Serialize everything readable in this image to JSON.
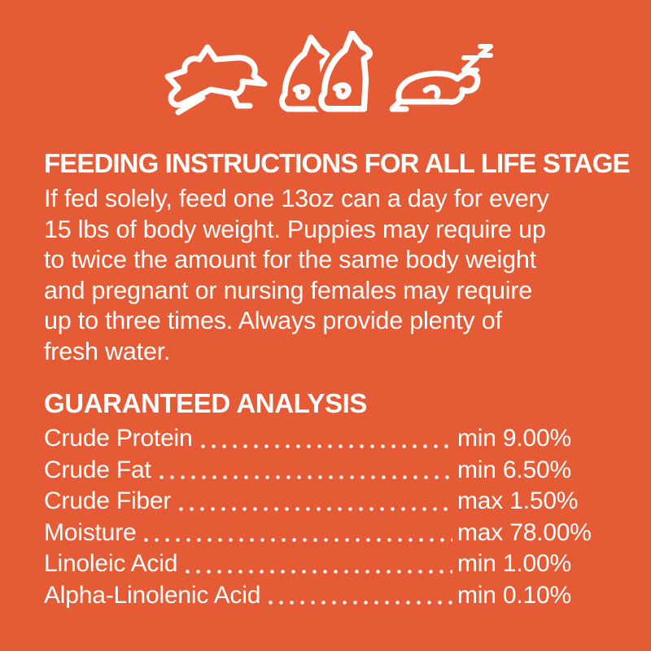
{
  "page": {
    "background_color": "#E55B36",
    "text_color": "#FFFFFF"
  },
  "icons": {
    "items": [
      {
        "name": "running-dog-icon",
        "description": "running dog line art"
      },
      {
        "name": "sitting-dogs-icon",
        "description": "two sitting dogs line art"
      },
      {
        "name": "sleeping-dog-icon",
        "description": "sleeping dog line art",
        "badge": "Zz"
      }
    ]
  },
  "feeding": {
    "title": "FEEDING INSTRUCTIONS FOR ALL LIFE STAGE",
    "lines": [
      "If fed solely, feed one 13oz can a day for every",
      "15 lbs of body weight. Puppies may require up",
      "to twice the amount for the same body weight",
      "and pregnant or nursing females may require",
      "up to three times. Always provide plenty of",
      "fresh water."
    ]
  },
  "analysis": {
    "title": "GUARANTEED ANALYSIS",
    "rows": [
      {
        "label": "Crude Protein",
        "qualifier": "min",
        "value": "9.00%"
      },
      {
        "label": "Crude Fat",
        "qualifier": "min",
        "value": "6.50%"
      },
      {
        "label": "Crude Fiber",
        "qualifier": "max",
        "value": "1.50%"
      },
      {
        "label": "Moisture",
        "qualifier": "max",
        "value": "78.00%"
      },
      {
        "label": "Linoleic Acid",
        "qualifier": "min",
        "value": "1.00%"
      },
      {
        "label": "Alpha-Linolenic Acid",
        "qualifier": "min",
        "value": "0.10%"
      }
    ]
  }
}
